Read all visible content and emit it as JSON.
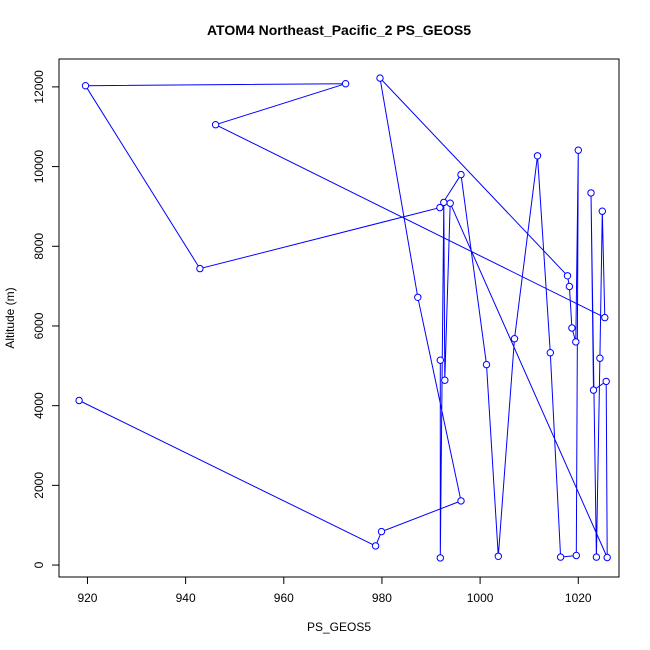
{
  "chart_data": {
    "type": "line",
    "title": "ATOM4 Northeast_Pacific_2 PS_GEOS5",
    "xlabel": "PS_GEOS5",
    "ylabel": "Altitude (m)",
    "xlim": [
      914.2,
      1028.3
    ],
    "ylim": [
      -300,
      12700
    ],
    "xticks": [
      920,
      940,
      960,
      980,
      1000,
      1020
    ],
    "yticks": [
      0,
      2000,
      4000,
      6000,
      8000,
      10000,
      12000
    ],
    "series": [
      {
        "color": "#0000ff",
        "marker": "open-circle",
        "points": [
          [
            918.3,
            4130
          ],
          [
            978.7,
            480
          ],
          [
            979.9,
            840
          ],
          [
            996.1,
            1610
          ],
          [
            987.3,
            6720
          ],
          [
            979.6,
            12220
          ],
          [
            1017.8,
            7260
          ],
          [
            1018.2,
            6990
          ],
          [
            1018.7,
            5950
          ],
          [
            1019.5,
            5600
          ],
          [
            1020.0,
            10410
          ],
          [
            1019.6,
            240
          ],
          [
            1016.4,
            200
          ],
          [
            1014.3,
            5330
          ],
          [
            1011.7,
            10270
          ],
          [
            1007.0,
            5680
          ],
          [
            1003.7,
            220
          ],
          [
            1001.3,
            5030
          ],
          [
            996.1,
            9800
          ],
          [
            991.8,
            8970
          ],
          [
            942.9,
            7440
          ],
          [
            919.6,
            12030
          ],
          [
            972.6,
            12080
          ],
          [
            946.1,
            11050
          ],
          [
            1025.4,
            6210
          ],
          [
            1024.9,
            8880
          ],
          [
            1024.4,
            5190
          ],
          [
            1023.7,
            200
          ],
          [
            1022.6,
            9340
          ],
          [
            1023.1,
            4390
          ],
          [
            1025.7,
            4610
          ],
          [
            1025.9,
            190
          ],
          [
            993.9,
            9080
          ],
          [
            992.8,
            4640
          ],
          [
            992.6,
            9100
          ],
          [
            991.9,
            180
          ],
          [
            991.9,
            5140
          ]
        ]
      }
    ]
  }
}
